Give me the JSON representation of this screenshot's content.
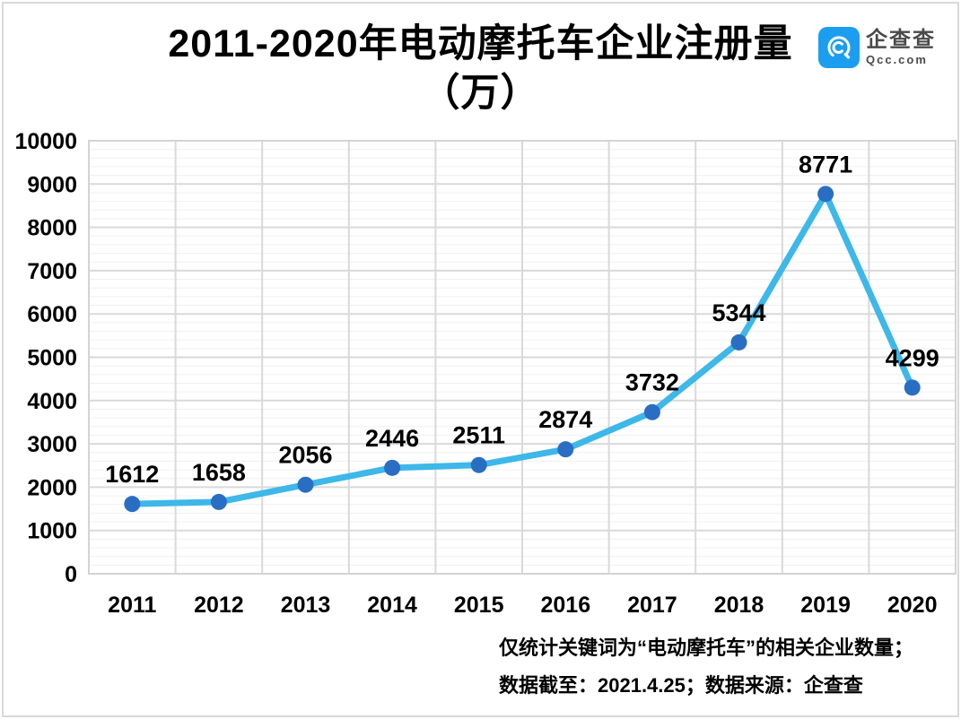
{
  "header": {
    "title_line1": "2011-2020年电动摩托车企业注册量",
    "title_line2": "（万）",
    "logo": {
      "name_cn": "企查查",
      "name_en": "Qcc.com",
      "brand_color": "#1C9EF0"
    }
  },
  "chart_data": {
    "type": "line",
    "title": "2011-2020年电动摩托车企业注册量（万）",
    "categories": [
      "2011",
      "2012",
      "2013",
      "2014",
      "2015",
      "2016",
      "2017",
      "2018",
      "2019",
      "2020"
    ],
    "series": [
      {
        "name": "电动摩托车企业注册量",
        "values": [
          1612,
          1658,
          2056,
          2446,
          2511,
          2874,
          3732,
          5344,
          8771,
          4299
        ]
      }
    ],
    "xlabel": "",
    "ylabel": "",
    "ylim": [
      0,
      10000
    ],
    "y_tick_interval": 1000,
    "y_minor_interval": 200,
    "grid": true,
    "legend": false,
    "data_labels": true,
    "line_color": "#3EB7E9",
    "marker_color": "#2A6EC4",
    "major_grid_color": "#d9d9d9",
    "minor_grid_color": "#f0f0f0"
  },
  "footer": {
    "line1": "仅统计关键词为“电动摩托车”的相关企业数量；",
    "line2": "数据截至：2021.4.25；数据来源：企查查"
  }
}
